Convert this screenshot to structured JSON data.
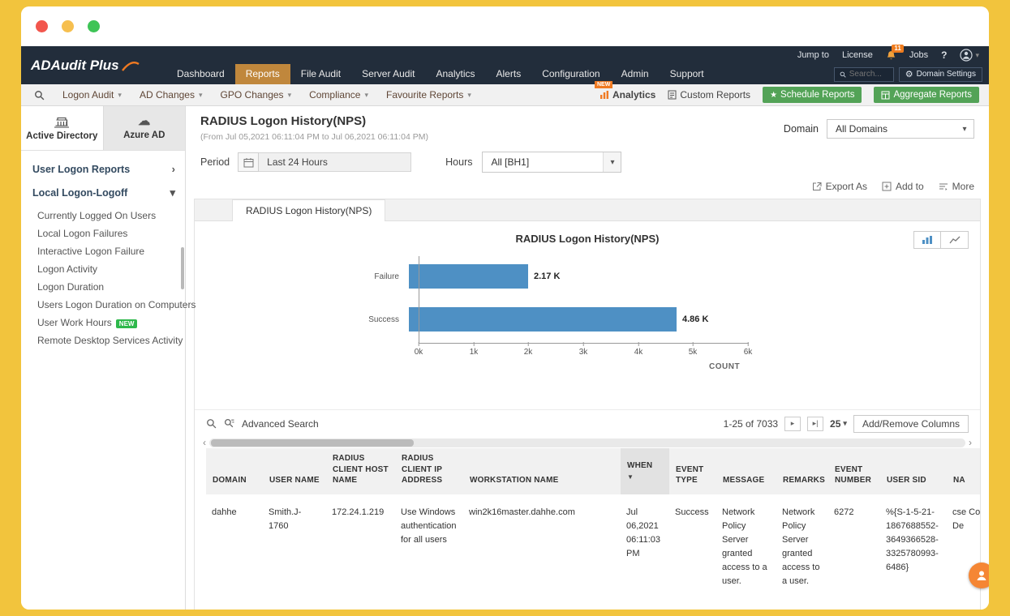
{
  "colors": {
    "frame": "#f2c43d",
    "navbar_bg": "#222d3b",
    "nav_active_bg": "#c0873c",
    "accent_orange": "#f07a22",
    "green_button": "#53a357",
    "new_badge_green": "#2eb84b",
    "bar_color": "#4e90c4",
    "traffic_red": "#f2564d",
    "traffic_yellow": "#f6bf4f",
    "traffic_green": "#3ec456"
  },
  "navbar": {
    "logo": "ADAudit Plus",
    "utility": {
      "jump_to": "Jump to",
      "license": "License",
      "bell_badge": "11",
      "jobs": "Jobs",
      "help": "?"
    },
    "items": [
      "Dashboard",
      "Reports",
      "File Audit",
      "Server Audit",
      "Analytics",
      "Alerts",
      "Configuration",
      "Admin",
      "Support"
    ],
    "active_item": "Reports",
    "search_placeholder": "Search...",
    "domain_settings_label": "Domain Settings"
  },
  "toolbar": {
    "menus": [
      "Logon Audit",
      "AD Changes",
      "GPO Changes",
      "Compliance",
      "Favourite Reports"
    ],
    "analytics_label": "Analytics",
    "analytics_badge": "NEW",
    "custom_reports_label": "Custom Reports",
    "schedule_reports_label": "Schedule Reports",
    "aggregate_reports_label": "Aggregate Reports"
  },
  "sidebar": {
    "tabs": [
      {
        "label": "Active Directory",
        "active": true
      },
      {
        "label": "Azure AD",
        "active": false
      }
    ],
    "groups": [
      {
        "label": "User Logon Reports",
        "state": "collapsed"
      },
      {
        "label": "Local Logon-Logoff",
        "state": "expanded"
      }
    ],
    "items": [
      {
        "label": "Currently Logged On Users"
      },
      {
        "label": "Local Logon Failures"
      },
      {
        "label": "Interactive Logon Failure"
      },
      {
        "label": "Logon Activity"
      },
      {
        "label": "Logon Duration"
      },
      {
        "label": "Users Logon Duration on Computers"
      },
      {
        "label": "User Work Hours",
        "badge": "NEW"
      },
      {
        "label": "Remote Desktop Services Activity"
      }
    ]
  },
  "report": {
    "title": "RADIUS Logon History(NPS)",
    "subtitle": "(From Jul 05,2021 06:11:04 PM to Jul 06,2021 06:11:04 PM)",
    "domain_label": "Domain",
    "domain_value": "All Domains",
    "period_label": "Period",
    "period_value": "Last 24 Hours",
    "hours_label": "Hours",
    "hours_value": "All [BH1]",
    "export_label": "Export As",
    "add_to_label": "Add to",
    "more_label": "More",
    "tab_label": "RADIUS Logon History(NPS)"
  },
  "chart_data": {
    "type": "bar",
    "orientation": "horizontal",
    "title": "RADIUS Logon History(NPS)",
    "categories": [
      "Failure",
      "Success"
    ],
    "values": [
      2170,
      4860
    ],
    "value_labels": [
      "2.17 K",
      "4.86 K"
    ],
    "xlabel": "COUNT",
    "x_ticks": [
      "0k",
      "1k",
      "2k",
      "3k",
      "4k",
      "5k",
      "6k"
    ],
    "xlim": [
      0,
      6000
    ],
    "grid": false,
    "legend": false,
    "bar_color": "#4e90c4"
  },
  "table": {
    "advanced_search_label": "Advanced Search",
    "pagination": {
      "range": "1-25 of 7033",
      "page_size": "25"
    },
    "add_remove_columns_label": "Add/Remove Columns",
    "sort_column": "WHEN",
    "sort_direction": "desc",
    "headers": [
      "DOMAIN",
      "USER NAME",
      "RADIUS CLIENT HOST NAME",
      "RADIUS CLIENT IP ADDRESS",
      "WORKSTATION NAME",
      "WHEN",
      "EVENT TYPE",
      "MESSAGE",
      "REMARKS",
      "EVENT NUMBER",
      "USER SID",
      "NA"
    ],
    "rows": [
      {
        "domain": "dahhe",
        "user_name": "Smith.J-1760",
        "radius_client_host_name": "172.24.1.219",
        "radius_client_ip_address": "Use Windows authentication for all users",
        "workstation_name": "win2k16master.dahhe.com",
        "when": "Jul 06,2021 06:11:03 PM",
        "event_type": "Success",
        "message": "Network Policy Server granted access to a user.",
        "remarks": "Network Policy Server granted access to a user.",
        "event_number": "6272",
        "user_sid": "%{S-1-5-21-1867688552-3649366528-3325780993-6486}",
        "na": "cse Co De"
      }
    ]
  },
  "icons": {
    "chevron_down": "▾",
    "chevron_right": "›",
    "chevron_left": "‹",
    "sort_desc": "▼",
    "star": "★",
    "gear": "⚙",
    "cloud": "☁",
    "next_page": "▸",
    "last_page": "▸|",
    "help": "?"
  }
}
